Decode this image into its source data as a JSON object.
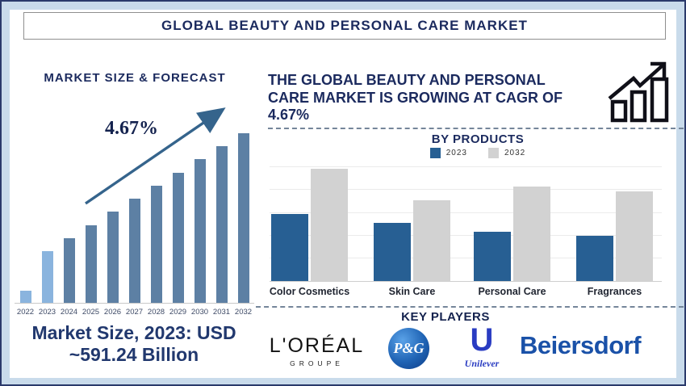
{
  "header": {
    "title": "GLOBAL BEAUTY AND PERSONAL CARE MARKET"
  },
  "left": {
    "section_title": "MARKET SIZE & FORECAST",
    "cagr_annotation": "4.67%",
    "market_size_line1": "Market Size, 2023: USD",
    "market_size_line2": "~591.24 Billion"
  },
  "right": {
    "headline_line1": "THE GLOBAL BEAUTY AND PERSONAL",
    "headline_line2": "CARE MARKET IS GROWING AT CAGR OF",
    "headline_line3": "4.67%",
    "products_title": "BY PRODUCTS",
    "key_players_title": "KEY PLAYERS"
  },
  "key_players": {
    "loreal_name": "L'ORÉAL",
    "loreal_sub": "GROUPE",
    "pg_name": "P&G",
    "unilever_initial": "U",
    "unilever_name": "Unilever",
    "beiersdorf_name": "Beiersdorf"
  },
  "palette": {
    "navy_text": "#1b2a5e",
    "frame_background": "#c9dbeb",
    "outer_border": "#2b3a6b",
    "trend_arrow": "#35648c",
    "dashed_divider": "#75869a",
    "loreal_black": "#131313",
    "pg_blue": "#1f63b4",
    "unilever_blue": "#2a3cc2",
    "beiersdorf_blue": "#1a51a8"
  },
  "chart_data": [
    {
      "type": "bar",
      "title": "MARKET SIZE & FORECAST",
      "categories": [
        "2022",
        "2023",
        "2024",
        "2025",
        "2026",
        "2027",
        "2028",
        "2029",
        "2030",
        "2031",
        "2032"
      ],
      "values_relative": [
        15,
        64,
        80,
        96,
        113,
        129,
        145,
        161,
        178,
        194,
        210
      ],
      "values_note": "no numeric axis shown; values are relative bar heights in px",
      "annotation": "4.67%",
      "known_point": "2023 market size USD ~591.24 Billion",
      "bar_color": "#5d80a4",
      "highlight_color": "#8ab4de",
      "highlight_years": [
        "2022",
        "2023"
      ],
      "trend_arrow": true,
      "grid": "off",
      "xlabel": "",
      "ylabel": ""
    },
    {
      "type": "bar",
      "title": "BY PRODUCTS",
      "categories": [
        "Color Cosmetics",
        "Skin Care",
        "Personal Care",
        "Fragrances"
      ],
      "series": [
        {
          "name": "2023",
          "color": "#275f93",
          "values_relative": [
            83,
            72,
            61,
            56
          ]
        },
        {
          "name": "2032",
          "color": "#d2d2d2",
          "values_relative": [
            139,
            100,
            117,
            111
          ]
        }
      ],
      "values_note": "no numeric axis shown; values are relative bar heights in px",
      "legend_position": "top",
      "grid": "horizontal",
      "xlabel": "",
      "ylabel": ""
    }
  ]
}
